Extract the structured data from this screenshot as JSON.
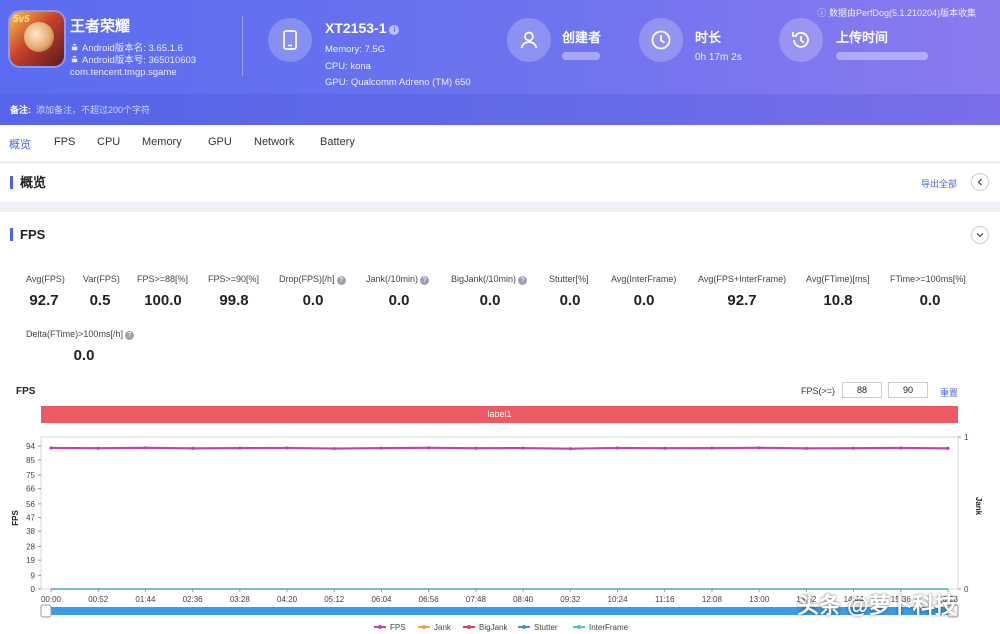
{
  "app": {
    "name": "王者荣耀",
    "android_version_name": "Android版本名: 3.65.1.6",
    "android_version_code": "Android版本号: 365010603",
    "package": "com.tencent.tmgp.sgame",
    "icon_badge": "5v5"
  },
  "device": {
    "name": "XT2153-1",
    "memory": "Memory: 7.5G",
    "cpu": "CPU: kona",
    "gpu": "GPU: Qualcomm Adreno (TM) 650"
  },
  "stats": {
    "creator_label": "创建者",
    "duration_label": "时长",
    "duration_value": "0h 17m 2s",
    "upload_label": "上传时间"
  },
  "collect_note": "数据由PerfDog(5.1.210204)版本收集",
  "remark": {
    "label": "备注:",
    "placeholder": "添加备注，不超过200个字符"
  },
  "tabs": [
    "概览",
    "FPS",
    "CPU",
    "Memory",
    "GPU",
    "Network",
    "Battery"
  ],
  "overview": {
    "title": "概览",
    "export_label": "导出全部"
  },
  "fps_section": {
    "title": "FPS",
    "metrics": [
      {
        "label": "Avg(FPS)",
        "value": "92.7",
        "help": false
      },
      {
        "label": "Var(FPS)",
        "value": "0.5",
        "help": false
      },
      {
        "label": "FPS>=88[%]",
        "value": "100.0",
        "help": false
      },
      {
        "label": "FPS>=90[%]",
        "value": "99.8",
        "help": false
      },
      {
        "label": "Drop(FPS)[/h]",
        "value": "0.0",
        "help": true
      },
      {
        "label": "Jank(/10min)",
        "value": "0.0",
        "help": true
      },
      {
        "label": "BigJank(/10min)",
        "value": "0.0",
        "help": true
      },
      {
        "label": "Stutter[%]",
        "value": "0.0",
        "help": false
      },
      {
        "label": "Avg(InterFrame)",
        "value": "0.0",
        "help": false
      },
      {
        "label": "Avg(FPS+InterFrame)",
        "value": "92.7",
        "help": false
      },
      {
        "label": "Avg(FTime)[ms]",
        "value": "10.8",
        "help": false
      },
      {
        "label": "FTime>=100ms[%]",
        "value": "0.0",
        "help": false
      },
      {
        "label": "Delta(FTime)>100ms[/h]",
        "value": "0.0",
        "help": true
      }
    ],
    "chart_title": "FPS",
    "threshold_label": "FPS(>=)",
    "threshold_1": "88",
    "threshold_2": "90",
    "reset_label": "重置",
    "label_bar": "label1"
  },
  "chart_data": {
    "type": "line",
    "ylabel": "FPS",
    "y2label": "Jank",
    "yticks": [
      0,
      9,
      19,
      28,
      38,
      47,
      56,
      66,
      75,
      85,
      94
    ],
    "y2ticks": [
      0,
      1
    ],
    "ylim": [
      0,
      100
    ],
    "x": [
      "00:00",
      "00:52",
      "01:44",
      "02:36",
      "03:28",
      "04:20",
      "05:12",
      "06:04",
      "06:56",
      "07:48",
      "08:40",
      "09:32",
      "10:24",
      "11:16",
      "12:08",
      "13:00",
      "13:52",
      "14:44",
      "15:36",
      "16:28"
    ],
    "series": [
      {
        "name": "FPS",
        "color": "#c040c0",
        "values": [
          92.8,
          92.6,
          92.9,
          92.5,
          92.7,
          92.8,
          92.4,
          92.7,
          92.9,
          92.6,
          92.7,
          92.3,
          92.8,
          92.6,
          92.7,
          92.9,
          92.5,
          92.6,
          92.8,
          92.5
        ]
      },
      {
        "name": "Jank",
        "color": "#f0a040",
        "values": [
          0,
          0,
          0,
          0,
          0,
          0,
          0,
          0,
          0,
          0,
          0,
          0,
          0,
          0,
          0,
          0,
          0,
          0,
          0,
          0
        ]
      },
      {
        "name": "BigJank",
        "color": "#e04050",
        "values": [
          0,
          0,
          0,
          0,
          0,
          0,
          0,
          0,
          0,
          0,
          0,
          0,
          0,
          0,
          0,
          0,
          0,
          0,
          0,
          0
        ]
      },
      {
        "name": "Stutter",
        "color": "#3a90e0",
        "values": [
          0,
          0,
          0,
          0,
          0,
          0,
          0,
          0,
          0,
          0,
          0,
          0,
          0,
          0,
          0,
          0,
          0,
          0,
          0,
          0
        ]
      },
      {
        "name": "InterFrame",
        "color": "#40c8d8",
        "values": [
          0,
          0,
          0,
          0,
          0,
          0,
          0,
          0,
          0,
          0,
          0,
          0,
          0,
          0,
          0,
          0,
          0,
          0,
          0,
          0
        ]
      }
    ],
    "legend_position": "bottom",
    "grid": false
  },
  "watermark": "头条 @萝卜科技"
}
